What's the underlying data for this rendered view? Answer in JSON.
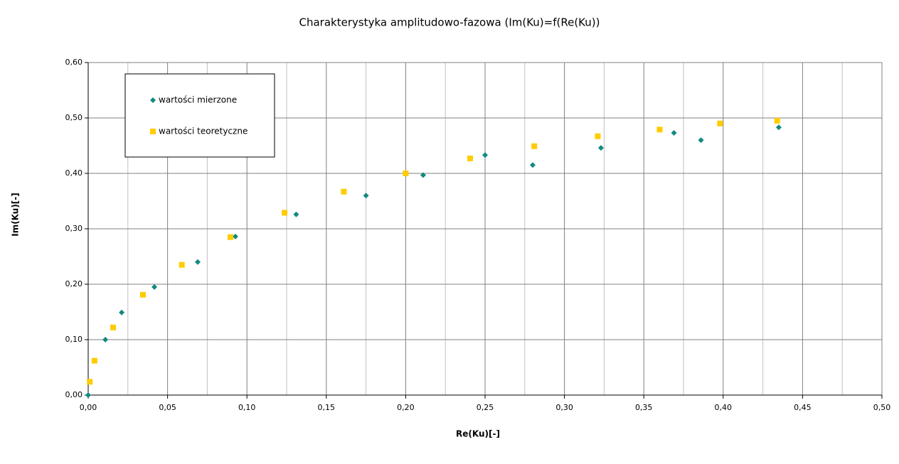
{
  "chart_data": {
    "type": "scatter",
    "title": "Charakterystyka amplitudowo-fazowa (Im(Ku)=f(Re(Ku))",
    "x_label": "Re(Ku)[-]",
    "y_label": "Im(Ku)[-]",
    "series": [
      {
        "name": "wartości mierzone",
        "color": "#138a80",
        "marker": "diamond",
        "x": [
          0,
          0.0108,
          0.0211,
          0.0417,
          0.069,
          0.0927,
          0.131,
          0.175,
          0.211,
          0.25,
          0.28,
          0.323,
          0.369,
          0.386,
          0.435
        ],
        "values": [
          0,
          0.1,
          0.149,
          0.195,
          0.24,
          0.286,
          0.326,
          0.36,
          0.397,
          0.433,
          0.415,
          0.446,
          0.473,
          0.46,
          0.483
        ]
      },
      {
        "name": "wartości teoretyczne",
        "color": "#ffcc00",
        "marker": "square",
        "x": [
          0.001,
          0.004,
          0.0157,
          0.0345,
          0.059,
          0.0896,
          0.1237,
          0.161,
          0.2,
          0.2406,
          0.281,
          0.321,
          0.36,
          0.398,
          0.434
        ],
        "values": [
          0.024,
          0.062,
          0.122,
          0.181,
          0.235,
          0.285,
          0.329,
          0.367,
          0.4,
          0.427,
          0.449,
          0.467,
          0.479,
          0.49,
          0.495
        ]
      }
    ],
    "xlim": [
      0,
      0.5
    ],
    "xticks": [
      {
        "value": 0,
        "label": "0,00"
      },
      {
        "value": 0.05,
        "label": "0,05"
      },
      {
        "value": 0.1,
        "label": "0,10"
      },
      {
        "value": 0.15,
        "label": "0,15"
      },
      {
        "value": 0.2,
        "label": "0,20"
      },
      {
        "value": 0.25,
        "label": "0,25"
      },
      {
        "value": 0.3,
        "label": "0,30"
      },
      {
        "value": 0.35,
        "label": "0,35"
      },
      {
        "value": 0.4,
        "label": "0,40"
      },
      {
        "value": 0.45,
        "label": "0,45"
      },
      {
        "value": 0.5,
        "label": "0,50"
      }
    ],
    "x_minor_grid": [
      0.025,
      0.075,
      0.125,
      0.175,
      0.225,
      0.275,
      0.325,
      0.375,
      0.425,
      0.475
    ],
    "ylim": [
      0,
      0.6
    ],
    "yticks": [
      {
        "value": 0,
        "label": "0,00"
      },
      {
        "value": 0.1,
        "label": "0,10"
      },
      {
        "value": 0.2,
        "label": "0,20"
      },
      {
        "value": 0.3,
        "label": "0,30"
      },
      {
        "value": 0.4,
        "label": "0,40"
      },
      {
        "value": 0.5,
        "label": "0,50"
      },
      {
        "value": 0.6,
        "label": "0,60"
      }
    ],
    "grid": true,
    "legend": "top-left"
  }
}
